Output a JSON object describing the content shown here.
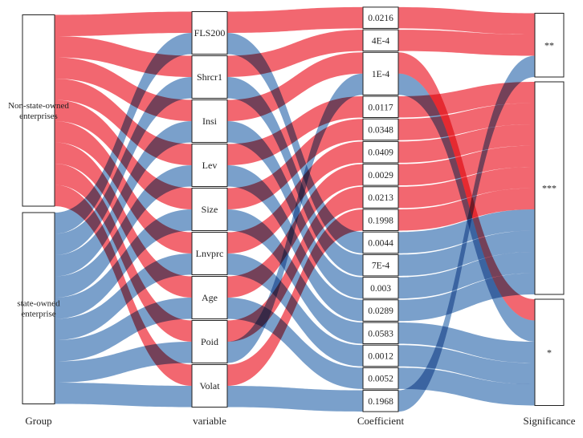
{
  "chart_data": {
    "type": "sankey",
    "axes": [
      "Group",
      "variable",
      "Coefficient",
      "Significance"
    ],
    "colors": {
      "non_state": "#ef4650",
      "state": "#5d8bbf"
    },
    "groups": [
      {
        "id": "nsoe",
        "label": "Non-state-owned enterprises",
        "lines": [
          "Non-state-owned",
          "enterprises"
        ],
        "color": "#ef4650"
      },
      {
        "id": "soe",
        "label": "state-owned enterprise",
        "lines": [
          "state-owned",
          "enterprise"
        ],
        "color": "#5d8bbf"
      }
    ],
    "variables": [
      "FLS200",
      "Shrcr1",
      "Insi",
      "Lev",
      "Size",
      "Lnvprc",
      "Age",
      "Poid",
      "Volat"
    ],
    "coefficients": [
      "0.0216",
      "4E-4",
      "1E-4",
      "0.0117",
      "0.0348",
      "0.0409",
      "0.0029",
      "0.0213",
      "0.1998",
      "0.0044",
      "7E-4",
      "0.003",
      "0.0289",
      "0.0583",
      "0.0012",
      "0.0052",
      "0.1968"
    ],
    "significance": [
      "**",
      "***",
      "*"
    ],
    "rows": [
      {
        "group": "nsoe",
        "variable": "FLS200",
        "coefficient": "0.0216",
        "significance": "**"
      },
      {
        "group": "nsoe",
        "variable": "Shrcr1",
        "coefficient": "4E-4",
        "significance": "**"
      },
      {
        "group": "nsoe",
        "variable": "Insi",
        "coefficient": "1E-4",
        "significance": "*"
      },
      {
        "group": "nsoe",
        "variable": "Lev",
        "coefficient": "0.0117",
        "significance": "***"
      },
      {
        "group": "nsoe",
        "variable": "Size",
        "coefficient": "0.0348",
        "significance": "***"
      },
      {
        "group": "nsoe",
        "variable": "Lnvprc",
        "coefficient": "0.0409",
        "significance": "***"
      },
      {
        "group": "nsoe",
        "variable": "Age",
        "coefficient": "0.0029",
        "significance": "***"
      },
      {
        "group": "nsoe",
        "variable": "Poid",
        "coefficient": "0.0213",
        "significance": "***"
      },
      {
        "group": "nsoe",
        "variable": "Volat",
        "coefficient": "0.1998",
        "significance": "***"
      },
      {
        "group": "soe",
        "variable": "FLS200",
        "coefficient": "0.0044",
        "significance": "***"
      },
      {
        "group": "soe",
        "variable": "Shrcr1",
        "coefficient": "7E-4",
        "significance": "***"
      },
      {
        "group": "soe",
        "variable": "Insi",
        "coefficient": "0.003",
        "significance": "***"
      },
      {
        "group": "soe",
        "variable": "Lev",
        "coefficient": "0.0289",
        "significance": "***"
      },
      {
        "group": "soe",
        "variable": "Size",
        "coefficient": "0.0583",
        "significance": "*"
      },
      {
        "group": "soe",
        "variable": "Lnvprc",
        "coefficient": "0.0012",
        "significance": "*"
      },
      {
        "group": "soe",
        "variable": "Age",
        "coefficient": "0.0052",
        "significance": "*"
      },
      {
        "group": "soe",
        "variable": "Poid",
        "coefficient": "1E-4",
        "significance": "*"
      },
      {
        "group": "soe",
        "variable": "Volat",
        "coefficient": "0.1968",
        "significance": "**"
      }
    ]
  }
}
